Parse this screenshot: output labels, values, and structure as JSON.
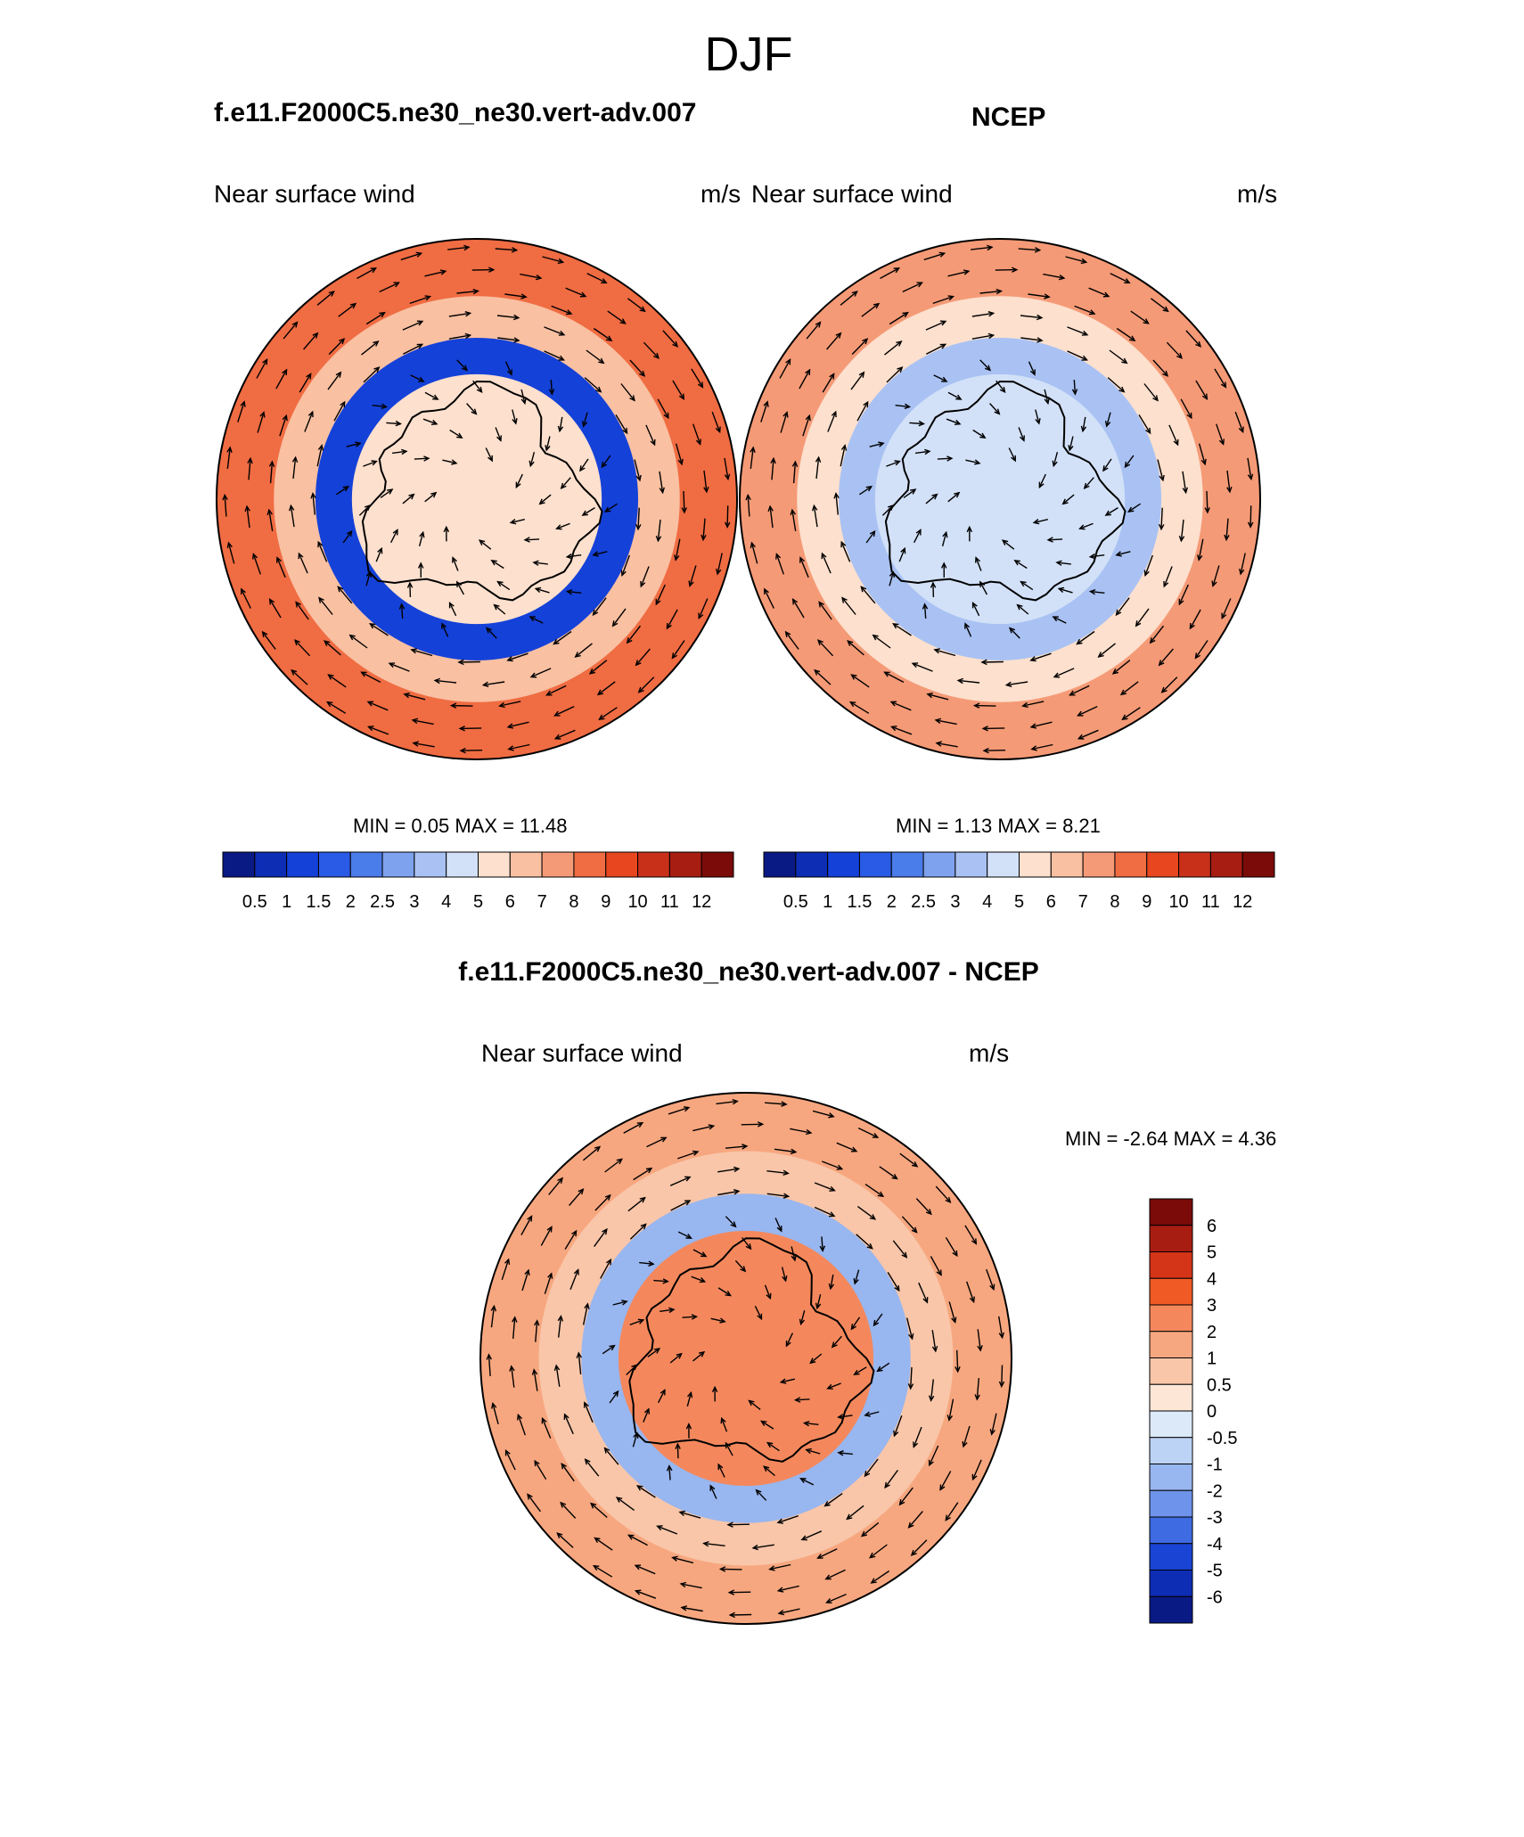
{
  "figure": {
    "season": "DJF",
    "diff_title": "f.e11.F2000C5.ne30_ne30.vert-adv.007 - NCEP"
  },
  "panels": [
    {
      "title": "f.e11.F2000C5.ne30_ne30.vert-adv.007",
      "left_label": "Near surface wind",
      "right_label": "m/s",
      "stats": "MIN =   0.05 MAX =  11.48"
    },
    {
      "title": "NCEP",
      "left_label": "Near surface wind",
      "right_label": "m/s",
      "stats": "MIN =   1.13 MAX =   8.21"
    },
    {
      "title": "",
      "left_label": "Near surface wind",
      "right_label": "m/s",
      "stats": "MIN =  -2.64 MAX =   4.36"
    }
  ],
  "colorbars": {
    "speed_labels": [
      "0.5",
      "1",
      "1.5",
      "2",
      "2.5",
      "3",
      "4",
      "5",
      "6",
      "7",
      "8",
      "9",
      "10",
      "11",
      "12"
    ],
    "speed_colors": [
      "#0a1a85",
      "#0d2db5",
      "#1441d8",
      "#2a5be6",
      "#4a7cea",
      "#7fa2ee",
      "#a9c2f3",
      "#d2e1f8",
      "#fde0cd",
      "#f9c0a2",
      "#f59a76",
      "#f06c42",
      "#e7461e",
      "#c8301a",
      "#a81d12",
      "#7a0b08"
    ],
    "diff_labels": [
      "6",
      "5",
      "4",
      "3",
      "2",
      "1",
      "0.5",
      "0",
      "-0.5",
      "-1",
      "-2",
      "-3",
      "-4",
      "-5",
      "-6"
    ],
    "diff_colors": [
      "#7a0b08",
      "#a81d12",
      "#d43418",
      "#f05a24",
      "#f4885c",
      "#f7a77f",
      "#f9c6a9",
      "#fde6d6",
      "#dce9f9",
      "#bcd3f5",
      "#98b6ef",
      "#6e93ea",
      "#3e6ae2",
      "#1a44d3",
      "#0d2db5",
      "#0a1a85"
    ]
  },
  "chart_data": [
    {
      "type": "heatmap",
      "title": "f.e11.F2000C5.ne30_ne30.vert-adv.007",
      "subtitle": "DJF",
      "field": "Near surface wind",
      "units": "m/s",
      "projection": "south polar stereographic",
      "min": 0.05,
      "max": 11.48,
      "contour_levels": [
        0.5,
        1,
        1.5,
        2,
        2.5,
        3,
        4,
        5,
        6,
        7,
        8,
        9,
        10,
        11,
        12
      ],
      "rings": [
        {
          "zone": "outer ring",
          "value": 8.5
        },
        {
          "zone": "mid ocean",
          "value": 6.5
        },
        {
          "zone": "coastal band",
          "value": 1.2
        },
        {
          "zone": "interior",
          "value": 5.5
        }
      ]
    },
    {
      "type": "heatmap",
      "title": "NCEP",
      "subtitle": "DJF",
      "field": "Near surface wind",
      "units": "m/s",
      "projection": "south polar stereographic",
      "min": 1.13,
      "max": 8.21,
      "contour_levels": [
        0.5,
        1,
        1.5,
        2,
        2.5,
        3,
        4,
        5,
        6,
        7,
        8,
        9,
        10,
        11,
        12
      ],
      "rings": [
        {
          "zone": "outer ring",
          "value": 7.5
        },
        {
          "zone": "mid ocean",
          "value": 5.5
        },
        {
          "zone": "coastal band",
          "value": 3.0
        },
        {
          "zone": "interior",
          "value": 4.0
        }
      ]
    },
    {
      "type": "heatmap",
      "title": "f.e11.F2000C5.ne30_ne30.vert-adv.007 - NCEP",
      "subtitle": "DJF",
      "field": "Near surface wind",
      "units": "m/s",
      "projection": "south polar stereographic",
      "min": -2.64,
      "max": 4.36,
      "contour_levels": [
        -6,
        -5,
        -4,
        -3,
        -2,
        -1,
        -0.5,
        0,
        0.5,
        1,
        2,
        3,
        4,
        5,
        6
      ],
      "rings": [
        {
          "zone": "outer ring",
          "value": 1.5
        },
        {
          "zone": "mid ocean",
          "value": 0.7
        },
        {
          "zone": "coastal band",
          "value": -1.5
        },
        {
          "zone": "interior",
          "value": 2.5
        }
      ]
    }
  ]
}
